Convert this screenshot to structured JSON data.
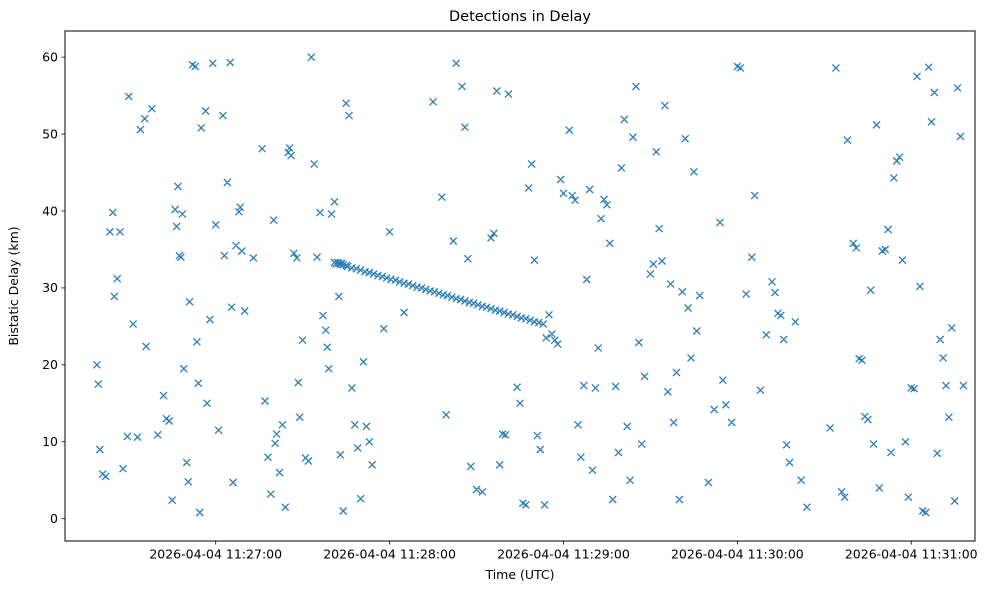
{
  "chart_data": {
    "type": "scatter",
    "title": "Detections in Delay",
    "xlabel": "Time (UTC)",
    "ylabel": "Bistatic Delay (km)",
    "marker": "x",
    "marker_color": "#1f77b4",
    "marker_size": 7,
    "grid": false,
    "legend": null,
    "x_axis_unit": "seconds after 2026-04-04 11:26:00 UTC",
    "xlim": [
      8,
      322
    ],
    "ylim": [
      -2.9,
      63.4
    ],
    "x_ticks": [
      {
        "value": 60,
        "label": "2026-04-04 11:27:00"
      },
      {
        "value": 120,
        "label": "2026-04-04 11:28:00"
      },
      {
        "value": 180,
        "label": "2026-04-04 11:29:00"
      },
      {
        "value": 240,
        "label": "2026-04-04 11:30:00"
      },
      {
        "value": 300,
        "label": "2026-04-04 11:31:00"
      }
    ],
    "y_ticks": [
      {
        "value": 0,
        "label": "0"
      },
      {
        "value": 10,
        "label": "10"
      },
      {
        "value": 20,
        "label": "20"
      },
      {
        "value": 30,
        "label": "30"
      },
      {
        "value": 40,
        "label": "40"
      },
      {
        "value": 50,
        "label": "50"
      },
      {
        "value": 60,
        "label": "60"
      }
    ],
    "points": [
      [
        19,
        20.0
      ],
      [
        19.5,
        17.5
      ],
      [
        20,
        9.0
      ],
      [
        21,
        5.8
      ],
      [
        22,
        5.5
      ],
      [
        23.5,
        37.3
      ],
      [
        24.5,
        39.8
      ],
      [
        25,
        28.9
      ],
      [
        26,
        31.2
      ],
      [
        27,
        37.3
      ],
      [
        28,
        6.5
      ],
      [
        29.5,
        10.7
      ],
      [
        30,
        54.9
      ],
      [
        31.5,
        25.3
      ],
      [
        33,
        10.6
      ],
      [
        34,
        50.6
      ],
      [
        35.5,
        52.0
      ],
      [
        36,
        22.4
      ],
      [
        38,
        53.3
      ],
      [
        40,
        10.9
      ],
      [
        42,
        16.0
      ],
      [
        43,
        13.0
      ],
      [
        44,
        12.7
      ],
      [
        45,
        2.4
      ],
      [
        46,
        40.2
      ],
      [
        46.5,
        38.0
      ],
      [
        47,
        43.2
      ],
      [
        47.5,
        34.2
      ],
      [
        48,
        34.0
      ],
      [
        48.5,
        39.6
      ],
      [
        49,
        19.5
      ],
      [
        50,
        7.3
      ],
      [
        50.5,
        4.8
      ],
      [
        51,
        28.2
      ],
      [
        52,
        59.0
      ],
      [
        53,
        58.8
      ],
      [
        53.5,
        23.0
      ],
      [
        54,
        17.6
      ],
      [
        54.5,
        0.8
      ],
      [
        55,
        50.8
      ],
      [
        56.5,
        53.0
      ],
      [
        57,
        15.0
      ],
      [
        58,
        25.9
      ],
      [
        59,
        59.2
      ],
      [
        60,
        38.2
      ],
      [
        61,
        11.5
      ],
      [
        62.5,
        52.4
      ],
      [
        63,
        34.2
      ],
      [
        64,
        43.7
      ],
      [
        65,
        59.3
      ],
      [
        65.5,
        27.5
      ],
      [
        66,
        4.7
      ],
      [
        67,
        35.5
      ],
      [
        68,
        39.9
      ],
      [
        68.5,
        40.5
      ],
      [
        69,
        34.8
      ],
      [
        70,
        27.0
      ],
      [
        73,
        33.9
      ],
      [
        76,
        48.1
      ],
      [
        77,
        15.3
      ],
      [
        78,
        8.0
      ],
      [
        79,
        3.2
      ],
      [
        80,
        38.8
      ],
      [
        80.5,
        9.8
      ],
      [
        81,
        11.0
      ],
      [
        82,
        6.0
      ],
      [
        83,
        12.2
      ],
      [
        84,
        1.5
      ],
      [
        85,
        47.6
      ],
      [
        85.5,
        48.2
      ],
      [
        86,
        47.2
      ],
      [
        87,
        34.5
      ],
      [
        88,
        33.9
      ],
      [
        88.5,
        17.7
      ],
      [
        89,
        13.2
      ],
      [
        90,
        23.2
      ],
      [
        91,
        7.9
      ],
      [
        92,
        7.5
      ],
      [
        93,
        60.0
      ],
      [
        94,
        46.1
      ],
      [
        95,
        34.0
      ],
      [
        96,
        39.8
      ],
      [
        97,
        26.4
      ],
      [
        98,
        24.5
      ],
      [
        98.5,
        22.3
      ],
      [
        99,
        19.5
      ],
      [
        100,
        39.6
      ],
      [
        101,
        41.2
      ],
      [
        102.5,
        28.9
      ],
      [
        103,
        8.3
      ],
      [
        104,
        1.0
      ],
      [
        105,
        54.0
      ],
      [
        106,
        52.4
      ],
      [
        107,
        17.0
      ],
      [
        108,
        12.2
      ],
      [
        109,
        9.2
      ],
      [
        110,
        2.6
      ],
      [
        111,
        20.4
      ],
      [
        112,
        12.0
      ],
      [
        113,
        10.0
      ],
      [
        114,
        7.0
      ],
      [
        118,
        24.7
      ],
      [
        120,
        37.3
      ],
      [
        125,
        26.8
      ],
      [
        135,
        54.2
      ],
      [
        138,
        41.8
      ],
      [
        139.5,
        13.5
      ],
      [
        142,
        36.1
      ],
      [
        143,
        59.2
      ],
      [
        145,
        56.2
      ],
      [
        146,
        50.9
      ],
      [
        147,
        33.8
      ],
      [
        148,
        6.8
      ],
      [
        150,
        3.8
      ],
      [
        152,
        3.5
      ],
      [
        155,
        36.5
      ],
      [
        156,
        37.1
      ],
      [
        157,
        55.6
      ],
      [
        158,
        7.0
      ],
      [
        159,
        11.0
      ],
      [
        160,
        10.9
      ],
      [
        161,
        55.2
      ],
      [
        164,
        17.1
      ],
      [
        165,
        15.0
      ],
      [
        166,
        2.0
      ],
      [
        167,
        1.8
      ],
      [
        168,
        43.0
      ],
      [
        169,
        46.1
      ],
      [
        170,
        33.6
      ],
      [
        171,
        10.8
      ],
      [
        172,
        9.0
      ],
      [
        173.5,
        1.8
      ],
      [
        174,
        23.5
      ],
      [
        175,
        26.5
      ],
      [
        176,
        24.0
      ],
      [
        177,
        23.2
      ],
      [
        178,
        22.7
      ],
      [
        179,
        44.1
      ],
      [
        180,
        42.3
      ],
      [
        182,
        50.5
      ],
      [
        183,
        42.0
      ],
      [
        184,
        41.4
      ],
      [
        185,
        12.2
      ],
      [
        186,
        8.0
      ],
      [
        187,
        17.3
      ],
      [
        188,
        31.1
      ],
      [
        189,
        42.8
      ],
      [
        190,
        6.3
      ],
      [
        191,
        17.0
      ],
      [
        192,
        22.2
      ],
      [
        193,
        39.0
      ],
      [
        194,
        41.5
      ],
      [
        195,
        40.8
      ],
      [
        196,
        35.8
      ],
      [
        197,
        2.5
      ],
      [
        198,
        17.2
      ],
      [
        199,
        8.6
      ],
      [
        200,
        45.6
      ],
      [
        201,
        51.9
      ],
      [
        202,
        12.0
      ],
      [
        203,
        5.0
      ],
      [
        204,
        49.6
      ],
      [
        205,
        56.2
      ],
      [
        206,
        22.9
      ],
      [
        207,
        9.7
      ],
      [
        208,
        18.5
      ],
      [
        210,
        31.8
      ],
      [
        211,
        33.1
      ],
      [
        212,
        47.7
      ],
      [
        213,
        37.7
      ],
      [
        214,
        33.5
      ],
      [
        215,
        53.7
      ],
      [
        216,
        16.5
      ],
      [
        217,
        30.5
      ],
      [
        218,
        12.5
      ],
      [
        219,
        19.0
      ],
      [
        220,
        2.5
      ],
      [
        221,
        29.5
      ],
      [
        222,
        49.4
      ],
      [
        223,
        27.4
      ],
      [
        224,
        20.9
      ],
      [
        225,
        45.1
      ],
      [
        226,
        24.4
      ],
      [
        227,
        29.0
      ],
      [
        230,
        4.7
      ],
      [
        232,
        14.2
      ],
      [
        234,
        38.5
      ],
      [
        235,
        18.0
      ],
      [
        236,
        14.8
      ],
      [
        238,
        12.5
      ],
      [
        240,
        58.8
      ],
      [
        241,
        58.6
      ],
      [
        243,
        29.2
      ],
      [
        245,
        34.0
      ],
      [
        246,
        42.0
      ],
      [
        248,
        16.7
      ],
      [
        250,
        23.9
      ],
      [
        252,
        30.8
      ],
      [
        253,
        29.4
      ],
      [
        254,
        26.7
      ],
      [
        255,
        26.4
      ],
      [
        256,
        23.3
      ],
      [
        257,
        9.6
      ],
      [
        258,
        7.3
      ],
      [
        260,
        25.6
      ],
      [
        262,
        5.0
      ],
      [
        264,
        1.5
      ],
      [
        272,
        11.8
      ],
      [
        274,
        58.6
      ],
      [
        276,
        3.5
      ],
      [
        277,
        2.8
      ],
      [
        278,
        49.2
      ],
      [
        280,
        35.8
      ],
      [
        281,
        35.2
      ],
      [
        282,
        20.8
      ],
      [
        283,
        20.6
      ],
      [
        284,
        13.3
      ],
      [
        285,
        12.9
      ],
      [
        286,
        29.7
      ],
      [
        287,
        9.7
      ],
      [
        288,
        51.2
      ],
      [
        289,
        4.0
      ],
      [
        290,
        34.8
      ],
      [
        291,
        35.0
      ],
      [
        292,
        37.6
      ],
      [
        293,
        8.6
      ],
      [
        294,
        44.3
      ],
      [
        295,
        46.5
      ],
      [
        296,
        47.0
      ],
      [
        297,
        33.6
      ],
      [
        298,
        10.0
      ],
      [
        299,
        2.8
      ],
      [
        300,
        17.0
      ],
      [
        301,
        16.9
      ],
      [
        302,
        57.5
      ],
      [
        303,
        30.2
      ],
      [
        304,
        1.0
      ],
      [
        305,
        0.8
      ],
      [
        306,
        58.7
      ],
      [
        307,
        51.6
      ],
      [
        308,
        55.4
      ],
      [
        309,
        8.5
      ],
      [
        310,
        23.3
      ],
      [
        311,
        20.9
      ],
      [
        312,
        17.3
      ],
      [
        313,
        13.2
      ],
      [
        314,
        24.8
      ],
      [
        315,
        2.3
      ],
      [
        316,
        56.0
      ],
      [
        317,
        49.7
      ],
      [
        318,
        17.3
      ],
      [
        101,
        33.3
      ],
      [
        101.5,
        33.1
      ],
      [
        102,
        33.3
      ],
      [
        102.5,
        33.2
      ],
      [
        103,
        33.1
      ],
      [
        103.5,
        33.2
      ],
      [
        104,
        33.0
      ],
      [
        105,
        32.9
      ],
      [
        105.5,
        32.8
      ],
      [
        107,
        32.6
      ],
      [
        108.5,
        32.5
      ],
      [
        110,
        32.3
      ],
      [
        111.5,
        32.1
      ],
      [
        113,
        32.0
      ],
      [
        114.5,
        31.8
      ],
      [
        116,
        31.6
      ],
      [
        117.5,
        31.5
      ],
      [
        119,
        31.3
      ],
      [
        120.5,
        31.1
      ],
      [
        122,
        31.0
      ],
      [
        123.5,
        30.8
      ],
      [
        125,
        30.6
      ],
      [
        126.5,
        30.5
      ],
      [
        128,
        30.3
      ],
      [
        129.5,
        30.1
      ],
      [
        131,
        30.0
      ],
      [
        132.5,
        29.8
      ],
      [
        134,
        29.6
      ],
      [
        135.5,
        29.5
      ],
      [
        137,
        29.3
      ],
      [
        138.5,
        29.1
      ],
      [
        140,
        29.0
      ],
      [
        141.5,
        28.8
      ],
      [
        143,
        28.6
      ],
      [
        144.5,
        28.5
      ],
      [
        146,
        28.3
      ],
      [
        147.5,
        28.1
      ],
      [
        149,
        28.0
      ],
      [
        150.5,
        27.8
      ],
      [
        152,
        27.6
      ],
      [
        153.5,
        27.5
      ],
      [
        155,
        27.3
      ],
      [
        156.5,
        27.1
      ],
      [
        158,
        27.0
      ],
      [
        159.5,
        26.8
      ],
      [
        161,
        26.6
      ],
      [
        162.5,
        26.5
      ],
      [
        164,
        26.3
      ],
      [
        165.5,
        26.1
      ],
      [
        167,
        26.0
      ],
      [
        168.5,
        25.8
      ],
      [
        170,
        25.6
      ],
      [
        171.5,
        25.5
      ],
      [
        173,
        25.3
      ]
    ]
  }
}
